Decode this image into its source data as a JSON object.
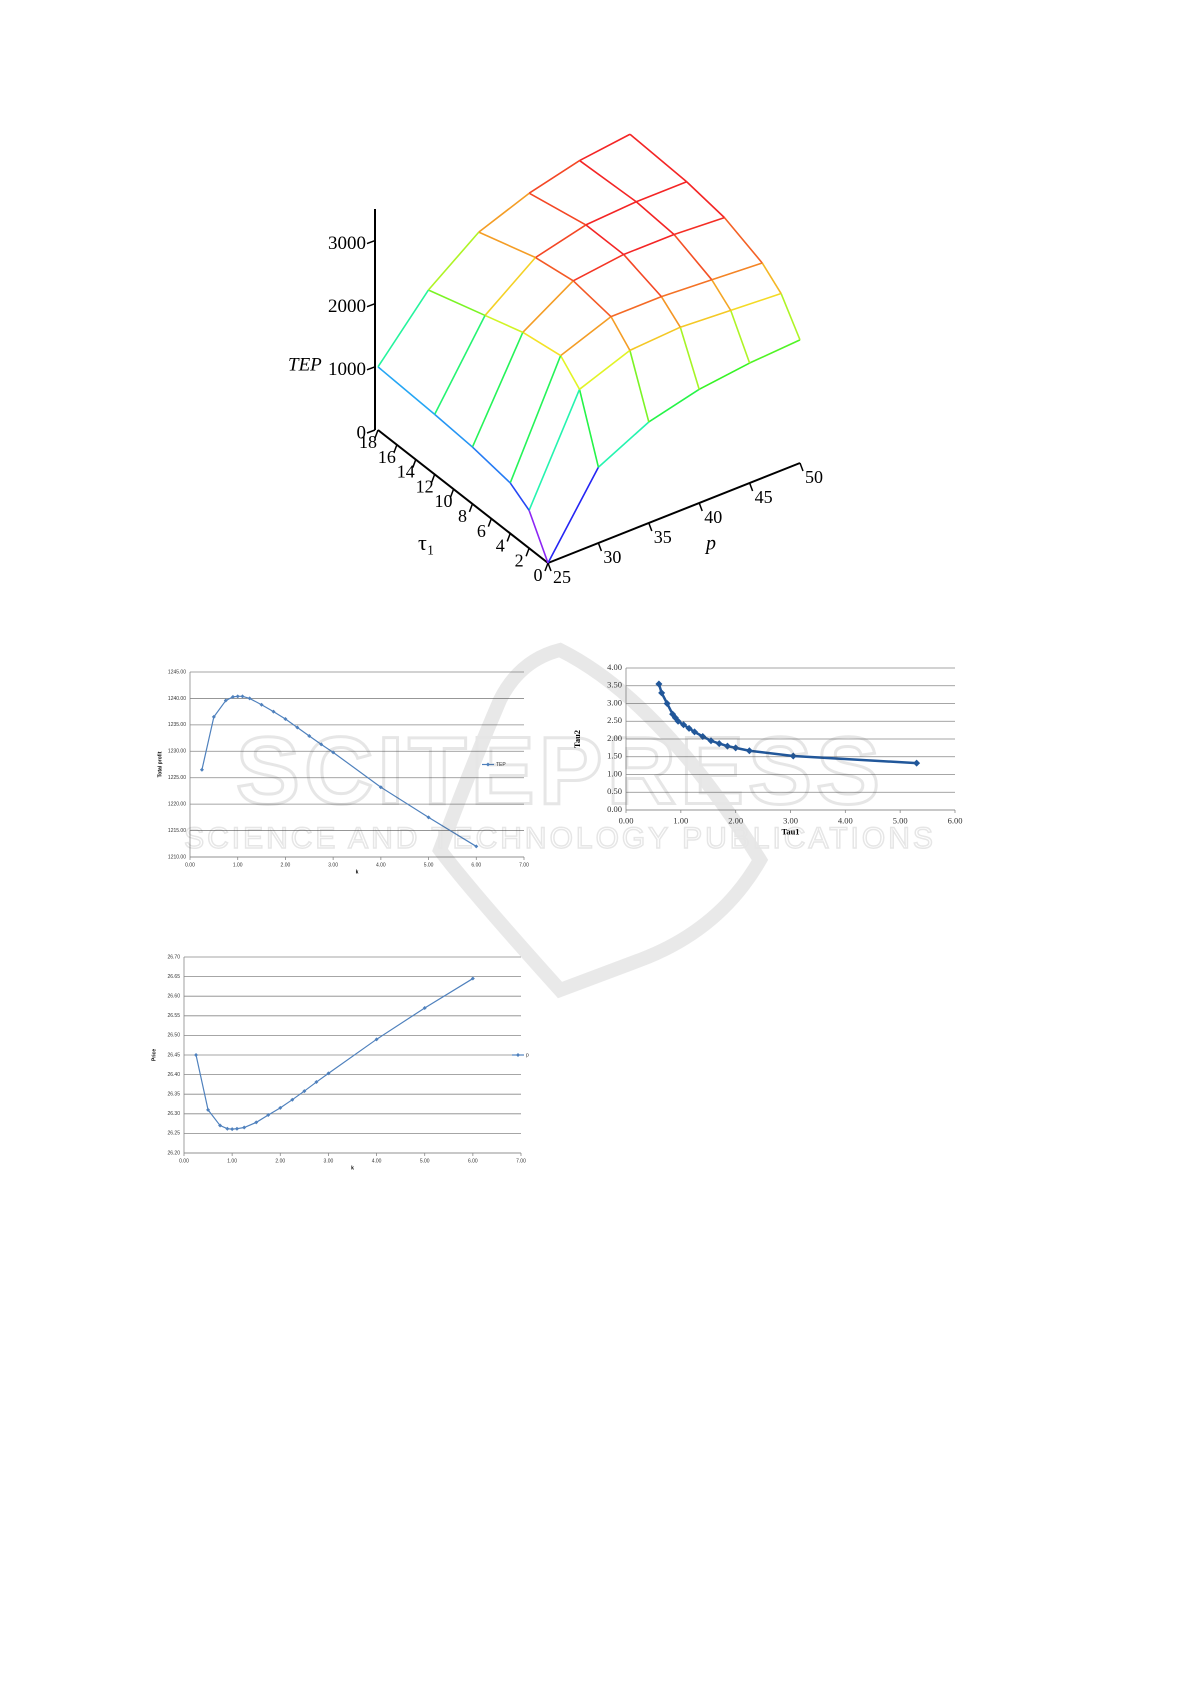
{
  "chart_data": [
    {
      "type": "surface",
      "x_label": "p",
      "y_label": "τ₁",
      "z_label": "TEP",
      "x": [
        25,
        30,
        35,
        40,
        45,
        50
      ],
      "y": [
        0,
        2,
        4,
        8,
        12,
        18
      ],
      "z": [
        [
          0,
          1200,
          1600,
          1800,
          1900,
          1950
        ],
        [
          600,
          2200,
          2500,
          2550,
          2500,
          2450
        ],
        [
          800,
          2500,
          2800,
          2800,
          2750,
          2700
        ],
        [
          900,
          2400,
          2900,
          3000,
          3000,
          2950
        ],
        [
          950,
          2200,
          2800,
          3000,
          3050,
          3050
        ],
        [
          1000,
          1900,
          2500,
          2800,
          3000,
          3100
        ]
      ],
      "xlim": [
        25,
        50
      ],
      "xticks": [
        25,
        30,
        35,
        40,
        45,
        50
      ],
      "ylim": [
        0,
        18
      ],
      "yticks": [
        0,
        2,
        4,
        6,
        8,
        10,
        12,
        14,
        16,
        18
      ],
      "zlim": [
        0,
        3500
      ],
      "zticks": [
        0,
        1000,
        2000,
        3000
      ]
    },
    {
      "type": "line",
      "x_label": "k",
      "y_label": "Total profit",
      "legend": "right",
      "grid": true,
      "marker": "diamond",
      "x": [
        0.25,
        0.5,
        0.75,
        0.9,
        1.0,
        1.1,
        1.25,
        1.5,
        1.75,
        2.0,
        2.25,
        2.5,
        2.75,
        3.0,
        4.0,
        5.0,
        6.0
      ],
      "series": [
        {
          "name": "TEP",
          "color": "#4f81bd",
          "values": [
            1226.5,
            1236.5,
            1239.6,
            1240.3,
            1240.4,
            1240.4,
            1240.0,
            1238.8,
            1237.5,
            1236.1,
            1234.5,
            1232.9,
            1231.3,
            1229.8,
            1223.2,
            1217.5,
            1212.0
          ]
        }
      ],
      "xlim": [
        0,
        7
      ],
      "xticks": [
        {
          "value": 0,
          "label": "0.00"
        },
        {
          "value": 1,
          "label": "1.00"
        },
        {
          "value": 2,
          "label": "2.00"
        },
        {
          "value": 3,
          "label": "3.00"
        },
        {
          "value": 4,
          "label": "4.00"
        },
        {
          "value": 5,
          "label": "5.00"
        },
        {
          "value": 6,
          "label": "6.00"
        },
        {
          "value": 7,
          "label": "7.00"
        }
      ],
      "ylim": [
        1210,
        1245
      ],
      "yticks": [
        {
          "value": 1210,
          "label": "1210.00"
        },
        {
          "value": 1215,
          "label": "1215.00"
        },
        {
          "value": 1220,
          "label": "1220.00"
        },
        {
          "value": 1225,
          "label": "1225.00"
        },
        {
          "value": 1230,
          "label": "1230.00"
        },
        {
          "value": 1235,
          "label": "1235.00"
        },
        {
          "value": 1240,
          "label": "1240.00"
        },
        {
          "value": 1245,
          "label": "1245.00"
        }
      ]
    },
    {
      "type": "line",
      "x_label": "Tau1",
      "y_label": "Tau2",
      "grid": true,
      "marker": "diamond",
      "color": "#21579a",
      "x": [
        0.6,
        0.65,
        0.75,
        0.85,
        0.9,
        0.95,
        1.05,
        1.15,
        1.25,
        1.4,
        1.55,
        1.7,
        1.85,
        2.0,
        2.25,
        3.05,
        5.3
      ],
      "values": [
        3.55,
        3.3,
        3.0,
        2.7,
        2.6,
        2.5,
        2.4,
        2.3,
        2.2,
        2.07,
        1.95,
        1.87,
        1.8,
        1.75,
        1.67,
        1.52,
        1.32
      ],
      "xlim": [
        0,
        6
      ],
      "xticks": [
        {
          "value": 0,
          "label": "0.00"
        },
        {
          "value": 1,
          "label": "1.00"
        },
        {
          "value": 2,
          "label": "2.00"
        },
        {
          "value": 3,
          "label": "3.00"
        },
        {
          "value": 4,
          "label": "4.00"
        },
        {
          "value": 5,
          "label": "5.00"
        },
        {
          "value": 6,
          "label": "6.00"
        }
      ],
      "ylim": [
        0,
        4
      ],
      "yticks": [
        {
          "value": 0,
          "label": "0.00"
        },
        {
          "value": 0.5,
          "label": "0.50"
        },
        {
          "value": 1,
          "label": "1.00"
        },
        {
          "value": 1.5,
          "label": "1.50"
        },
        {
          "value": 2,
          "label": "2.00"
        },
        {
          "value": 2.5,
          "label": "2.50"
        },
        {
          "value": 3,
          "label": "3.00"
        },
        {
          "value": 3.5,
          "label": "3.50"
        },
        {
          "value": 4,
          "label": "4.00"
        }
      ]
    },
    {
      "type": "line",
      "x_label": "k",
      "y_label": "Price",
      "legend": "right",
      "grid": true,
      "marker": "diamond",
      "x": [
        0.25,
        0.5,
        0.75,
        0.9,
        1.0,
        1.1,
        1.25,
        1.5,
        1.75,
        2.0,
        2.25,
        2.5,
        2.75,
        3.0,
        4.0,
        5.0,
        6.0
      ],
      "series": [
        {
          "name": "p",
          "color": "#4f81bd",
          "values": [
            26.45,
            26.31,
            26.27,
            26.262,
            26.261,
            26.262,
            26.265,
            26.278,
            26.297,
            26.315,
            26.336,
            26.358,
            26.381,
            26.403,
            26.49,
            26.57,
            26.645
          ]
        }
      ],
      "xlim": [
        0,
        7
      ],
      "xticks": [
        {
          "value": 0,
          "label": "0.00"
        },
        {
          "value": 1,
          "label": "1.00"
        },
        {
          "value": 2,
          "label": "2.00"
        },
        {
          "value": 3,
          "label": "3.00"
        },
        {
          "value": 4,
          "label": "4.00"
        },
        {
          "value": 5,
          "label": "5.00"
        },
        {
          "value": 6,
          "label": "6.00"
        },
        {
          "value": 7,
          "label": "7.00"
        }
      ],
      "ylim": [
        26.2,
        26.7
      ],
      "yticks": [
        {
          "value": 26.2,
          "label": "26.20"
        },
        {
          "value": 26.25,
          "label": "26.25"
        },
        {
          "value": 26.3,
          "label": "26.30"
        },
        {
          "value": 26.35,
          "label": "26.35"
        },
        {
          "value": 26.4,
          "label": "26.40"
        },
        {
          "value": 26.45,
          "label": "26.45"
        },
        {
          "value": 26.5,
          "label": "26.50"
        },
        {
          "value": 26.55,
          "label": "26.55"
        },
        {
          "value": 26.6,
          "label": "26.60"
        },
        {
          "value": 26.65,
          "label": "26.65"
        },
        {
          "value": 26.7,
          "label": "26.70"
        }
      ]
    }
  ],
  "watermark": {
    "title": "SCITEPRESS",
    "subtitle": "SCIENCE AND TECHNOLOGY PUBLICATIONS"
  }
}
